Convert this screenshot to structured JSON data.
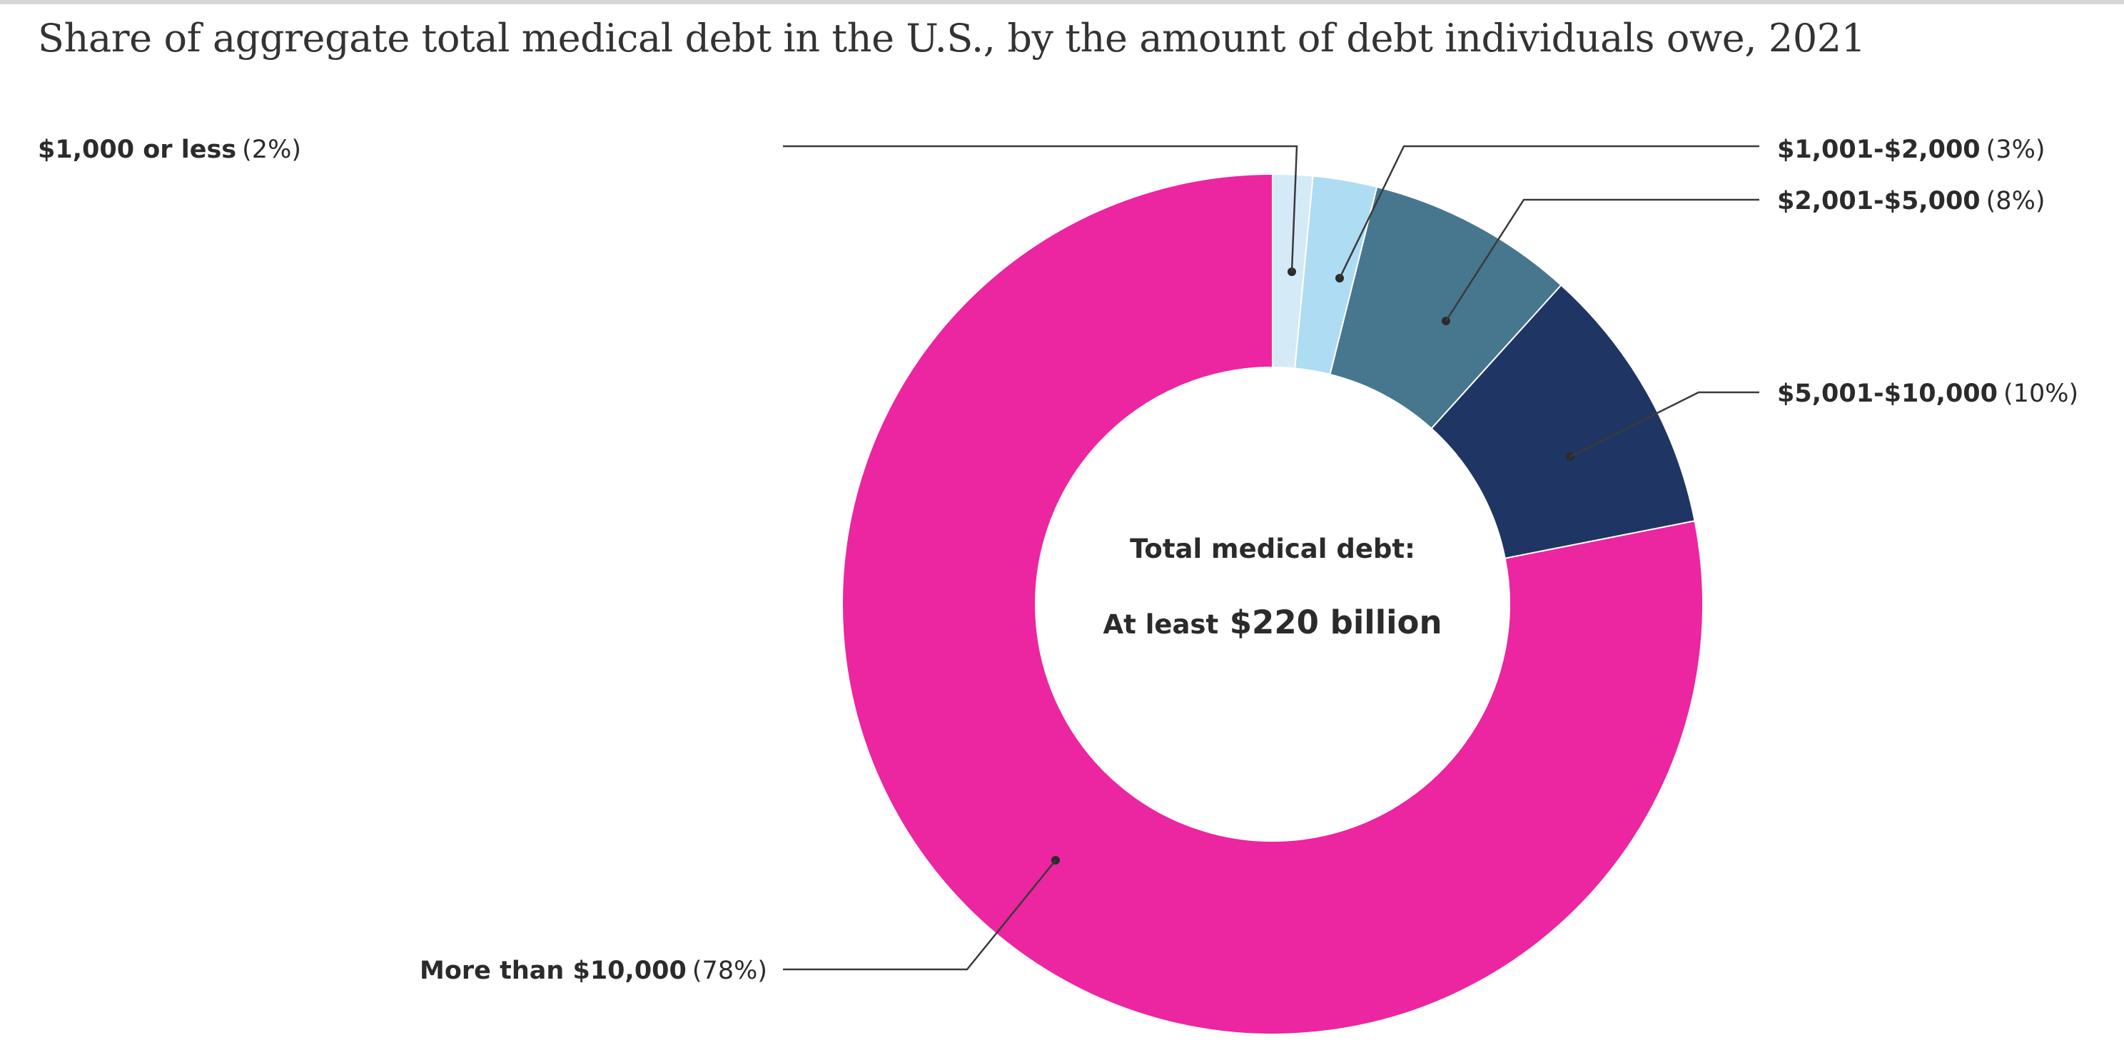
{
  "chart_data": {
    "type": "pie",
    "variant": "donut",
    "title": "Share of aggregate total medical debt in the U.S., by the amount of debt individuals owe, 2021",
    "center_text": {
      "line1": "Total medical debt:",
      "line2_prefix": "At least",
      "line2_value": "$220 billion"
    },
    "slices": [
      {
        "label": "$1,000 or less",
        "percent_label": "(2%)",
        "value": 1.5,
        "color": "#d5eaf7"
      },
      {
        "label": "$1,001-$2,000",
        "percent_label": "(3%)",
        "value": 2.4,
        "color": "#aedcf3"
      },
      {
        "label": "$2,001-$5,000",
        "percent_label": "(8%)",
        "value": 7.8,
        "color": "#46778e"
      },
      {
        "label": "$5,001-$10,000",
        "percent_label": "(10%)",
        "value": 10.2,
        "color": "#1f3564"
      },
      {
        "label": "More than $10,000",
        "percent_label": "(78%)",
        "value": 78.1,
        "color": "#ec25a0"
      }
    ]
  }
}
